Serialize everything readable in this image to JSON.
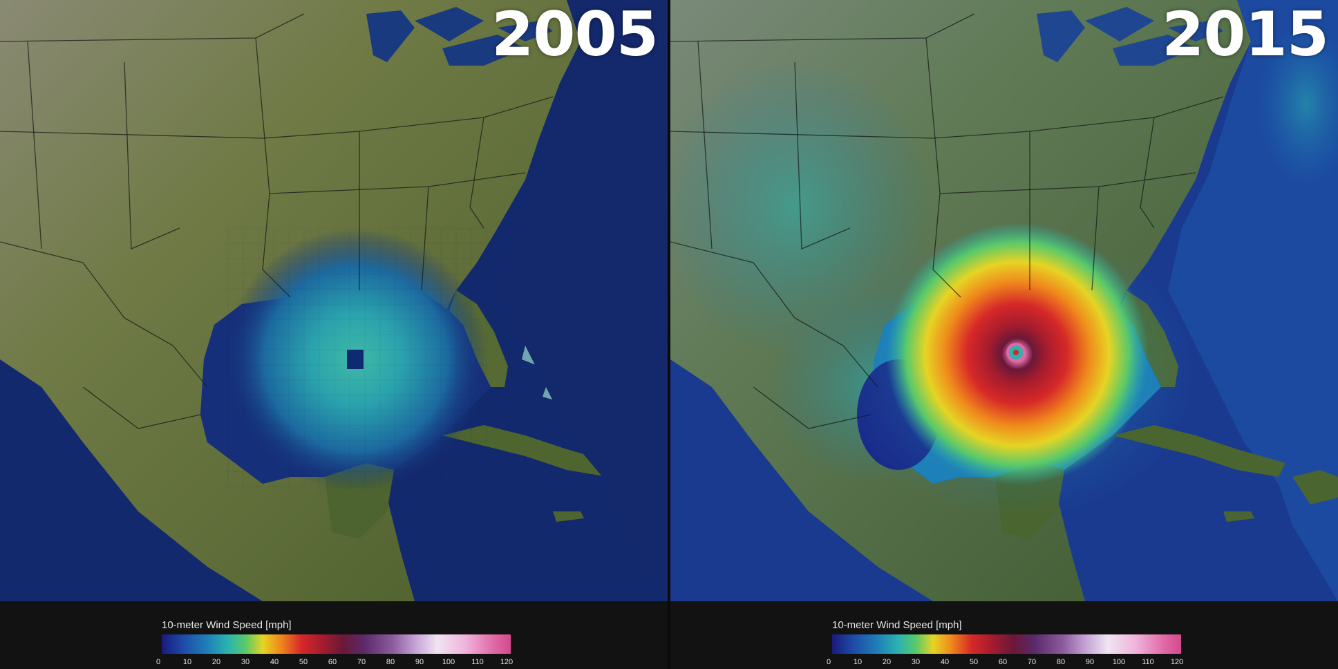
{
  "panels": [
    {
      "year": "2005",
      "legend": {
        "title": "10-meter Wind Speed [mph]",
        "ticks": [
          "0",
          "10",
          "20",
          "30",
          "40",
          "50",
          "60",
          "70",
          "80",
          "90",
          "100",
          "110",
          "120"
        ]
      }
    },
    {
      "year": "2015",
      "legend": {
        "title": "10-meter Wind Speed [mph]",
        "ticks": [
          "0",
          "10",
          "20",
          "30",
          "40",
          "50",
          "60",
          "70",
          "80",
          "90",
          "100",
          "110",
          "120"
        ]
      }
    }
  ],
  "colors": {
    "ocean_dark": "#0f1f5a",
    "land": "#5a6a3a",
    "storm_core_2005": "#2bb3b0",
    "storm_core_2015": "#d62828",
    "eye_2015": "#f0b4dc"
  }
}
